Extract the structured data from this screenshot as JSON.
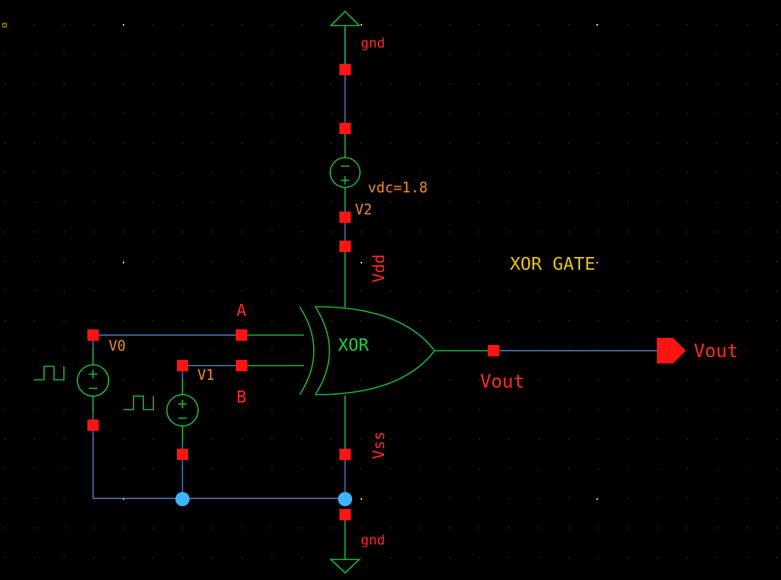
{
  "title": "XOR GATE",
  "gate": {
    "label": "XOR"
  },
  "inputs": {
    "a": "A",
    "b": "B"
  },
  "sources": {
    "v0": {
      "name": "V0"
    },
    "v1": {
      "name": "V1"
    },
    "v2": {
      "name": "V2",
      "param": "vdc=1.8"
    }
  },
  "nets": {
    "vdd": "Vdd",
    "vss": "Vss",
    "vout": "Vout",
    "gnd_top": "gnd",
    "gnd_bottom": "gnd"
  },
  "output_pin": {
    "label": "Vout"
  },
  "colors": {
    "background": "#000000",
    "wire": "#5f86d6",
    "symbol": "#1fc23a",
    "pin": "#ff1414",
    "junction": "#3fb5ff",
    "title": "#e8c31a"
  }
}
